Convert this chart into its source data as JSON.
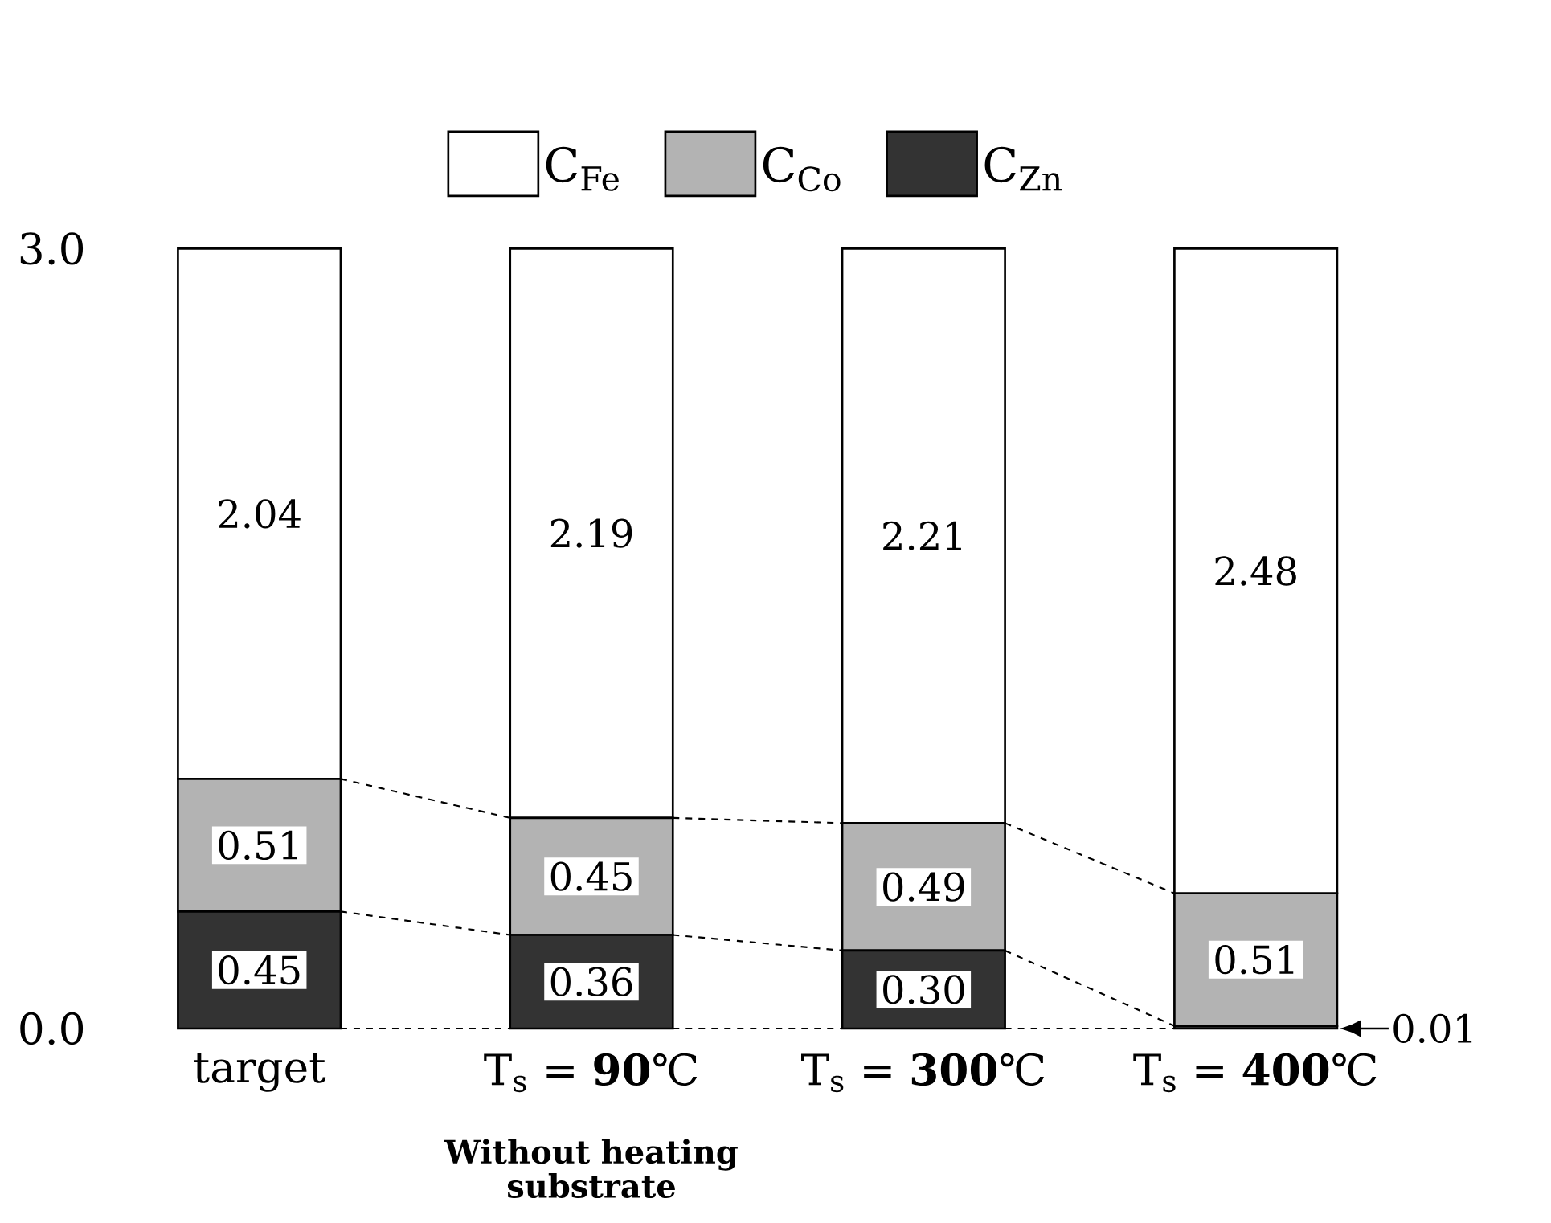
{
  "chart_data": {
    "type": "bar",
    "stacked": true,
    "categories": [
      "target",
      "T$_{s}$ = **90**℃",
      "T$_{s}$ = **300**℃",
      "T$_{s}$ = **400**℃"
    ],
    "series": [
      {
        "name": "C$_{Zn}$",
        "color": "#333333",
        "values": [
          0.45,
          0.36,
          0.3,
          0.01
        ],
        "value_labels": [
          "0.45",
          "0.36",
          "0.30",
          null
        ]
      },
      {
        "name": "C$_{Co}$",
        "color": "#b3b3b3",
        "values": [
          0.51,
          0.45,
          0.49,
          0.51
        ],
        "value_labels": [
          "0.51",
          "0.45",
          "0.49",
          "0.51"
        ]
      },
      {
        "name": "C$_{Fe}$",
        "color": "#ffffff",
        "values": [
          2.04,
          2.19,
          2.21,
          2.48
        ],
        "value_labels": [
          "2.04",
          "2.19",
          "2.21",
          "2.48"
        ]
      }
    ],
    "ylim": [
      0,
      3
    ],
    "yticks": [
      {
        "value": 0,
        "label": "0.0"
      },
      {
        "value": 3,
        "label": "3.0"
      }
    ],
    "legend": "top",
    "annotations": [
      "Without heating substrate",
      "0.01"
    ]
  }
}
